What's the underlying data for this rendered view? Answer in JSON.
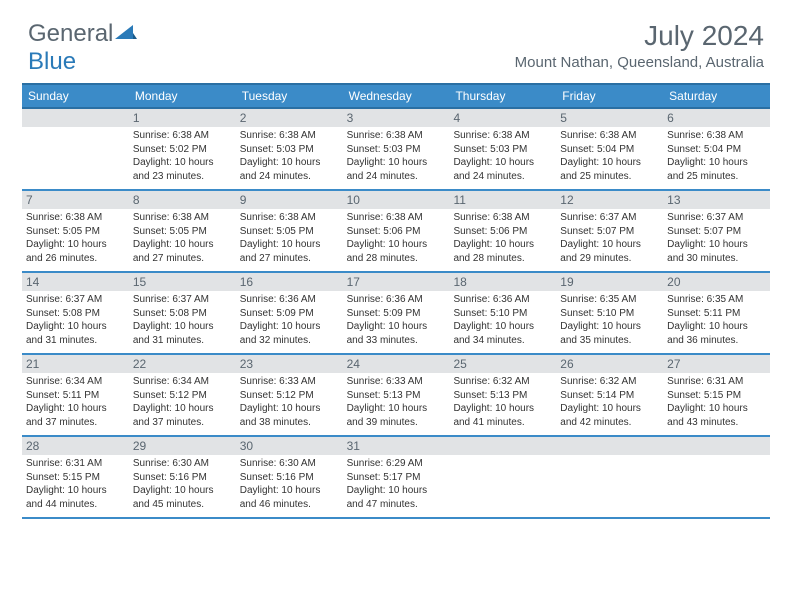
{
  "brand": {
    "part1": "General",
    "part2": "Blue"
  },
  "title": "July 2024",
  "location": "Mount Nathan, Queensland, Australia",
  "colors": {
    "header_bg": "#3b8bc8",
    "header_border": "#2a6fa3",
    "daynum_bg": "#e1e3e5",
    "text_muted": "#5a6670",
    "text_body": "#333333",
    "brand_blue": "#2a7ab8"
  },
  "day_names": [
    "Sunday",
    "Monday",
    "Tuesday",
    "Wednesday",
    "Thursday",
    "Friday",
    "Saturday"
  ],
  "weeks": [
    [
      {
        "n": "",
        "sr": "",
        "ss": "",
        "dl": ""
      },
      {
        "n": "1",
        "sr": "6:38 AM",
        "ss": "5:02 PM",
        "dl": "10 hours and 23 minutes."
      },
      {
        "n": "2",
        "sr": "6:38 AM",
        "ss": "5:03 PM",
        "dl": "10 hours and 24 minutes."
      },
      {
        "n": "3",
        "sr": "6:38 AM",
        "ss": "5:03 PM",
        "dl": "10 hours and 24 minutes."
      },
      {
        "n": "4",
        "sr": "6:38 AM",
        "ss": "5:03 PM",
        "dl": "10 hours and 24 minutes."
      },
      {
        "n": "5",
        "sr": "6:38 AM",
        "ss": "5:04 PM",
        "dl": "10 hours and 25 minutes."
      },
      {
        "n": "6",
        "sr": "6:38 AM",
        "ss": "5:04 PM",
        "dl": "10 hours and 25 minutes."
      }
    ],
    [
      {
        "n": "7",
        "sr": "6:38 AM",
        "ss": "5:05 PM",
        "dl": "10 hours and 26 minutes."
      },
      {
        "n": "8",
        "sr": "6:38 AM",
        "ss": "5:05 PM",
        "dl": "10 hours and 27 minutes."
      },
      {
        "n": "9",
        "sr": "6:38 AM",
        "ss": "5:05 PM",
        "dl": "10 hours and 27 minutes."
      },
      {
        "n": "10",
        "sr": "6:38 AM",
        "ss": "5:06 PM",
        "dl": "10 hours and 28 minutes."
      },
      {
        "n": "11",
        "sr": "6:38 AM",
        "ss": "5:06 PM",
        "dl": "10 hours and 28 minutes."
      },
      {
        "n": "12",
        "sr": "6:37 AM",
        "ss": "5:07 PM",
        "dl": "10 hours and 29 minutes."
      },
      {
        "n": "13",
        "sr": "6:37 AM",
        "ss": "5:07 PM",
        "dl": "10 hours and 30 minutes."
      }
    ],
    [
      {
        "n": "14",
        "sr": "6:37 AM",
        "ss": "5:08 PM",
        "dl": "10 hours and 31 minutes."
      },
      {
        "n": "15",
        "sr": "6:37 AM",
        "ss": "5:08 PM",
        "dl": "10 hours and 31 minutes."
      },
      {
        "n": "16",
        "sr": "6:36 AM",
        "ss": "5:09 PM",
        "dl": "10 hours and 32 minutes."
      },
      {
        "n": "17",
        "sr": "6:36 AM",
        "ss": "5:09 PM",
        "dl": "10 hours and 33 minutes."
      },
      {
        "n": "18",
        "sr": "6:36 AM",
        "ss": "5:10 PM",
        "dl": "10 hours and 34 minutes."
      },
      {
        "n": "19",
        "sr": "6:35 AM",
        "ss": "5:10 PM",
        "dl": "10 hours and 35 minutes."
      },
      {
        "n": "20",
        "sr": "6:35 AM",
        "ss": "5:11 PM",
        "dl": "10 hours and 36 minutes."
      }
    ],
    [
      {
        "n": "21",
        "sr": "6:34 AM",
        "ss": "5:11 PM",
        "dl": "10 hours and 37 minutes."
      },
      {
        "n": "22",
        "sr": "6:34 AM",
        "ss": "5:12 PM",
        "dl": "10 hours and 37 minutes."
      },
      {
        "n": "23",
        "sr": "6:33 AM",
        "ss": "5:12 PM",
        "dl": "10 hours and 38 minutes."
      },
      {
        "n": "24",
        "sr": "6:33 AM",
        "ss": "5:13 PM",
        "dl": "10 hours and 39 minutes."
      },
      {
        "n": "25",
        "sr": "6:32 AM",
        "ss": "5:13 PM",
        "dl": "10 hours and 41 minutes."
      },
      {
        "n": "26",
        "sr": "6:32 AM",
        "ss": "5:14 PM",
        "dl": "10 hours and 42 minutes."
      },
      {
        "n": "27",
        "sr": "6:31 AM",
        "ss": "5:15 PM",
        "dl": "10 hours and 43 minutes."
      }
    ],
    [
      {
        "n": "28",
        "sr": "6:31 AM",
        "ss": "5:15 PM",
        "dl": "10 hours and 44 minutes."
      },
      {
        "n": "29",
        "sr": "6:30 AM",
        "ss": "5:16 PM",
        "dl": "10 hours and 45 minutes."
      },
      {
        "n": "30",
        "sr": "6:30 AM",
        "ss": "5:16 PM",
        "dl": "10 hours and 46 minutes."
      },
      {
        "n": "31",
        "sr": "6:29 AM",
        "ss": "5:17 PM",
        "dl": "10 hours and 47 minutes."
      },
      {
        "n": "",
        "sr": "",
        "ss": "",
        "dl": ""
      },
      {
        "n": "",
        "sr": "",
        "ss": "",
        "dl": ""
      },
      {
        "n": "",
        "sr": "",
        "ss": "",
        "dl": ""
      }
    ]
  ],
  "labels": {
    "sunrise": "Sunrise:",
    "sunset": "Sunset:",
    "daylight": "Daylight:"
  }
}
